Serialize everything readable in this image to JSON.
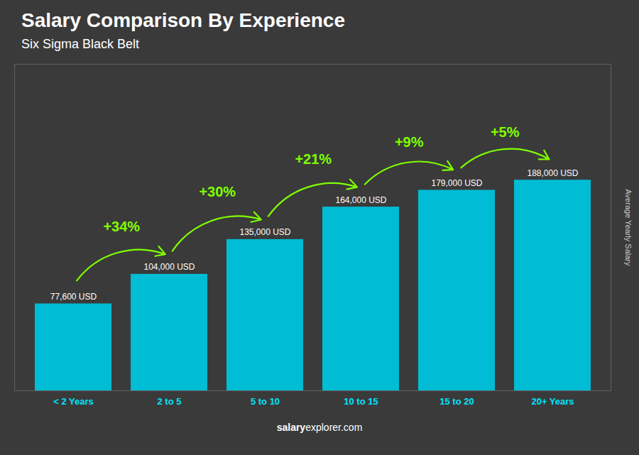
{
  "chart_data": {
    "type": "bar",
    "title": "Salary Comparison By Experience",
    "subtitle": "Six Sigma Black Belt",
    "ylabel": "Average Yearly Salary",
    "source": [
      "salary",
      "explorer.com"
    ],
    "categories": [
      "< 2 Years",
      "2 to 5",
      "5 to 10",
      "10 to 15",
      "15 to 20",
      "20+ Years"
    ],
    "values": [
      77600,
      104000,
      135000,
      164000,
      179000,
      188000
    ],
    "value_labels": [
      "77,600 USD",
      "104,000 USD",
      "135,000 USD",
      "164,000 USD",
      "179,000 USD",
      "188,000 USD"
    ],
    "data_labels": true,
    "annotations": [
      "+34%",
      "+30%",
      "+21%",
      "+9%",
      "+5%"
    ],
    "color": "#00bcd4",
    "ylim": [
      0,
      291400
    ],
    "tick_labels": "x",
    "grid": false
  }
}
